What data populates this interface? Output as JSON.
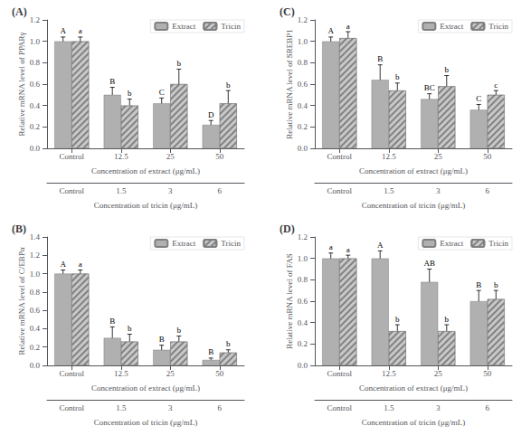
{
  "chart_data": [
    {
      "type": "bar",
      "title": "(A)",
      "ylabel": "Relative mRNA level of PPARγ",
      "xlabel": "Concentration of extract (μg/mL)",
      "xlabel2": "Concentration of tricin (μg/mL)",
      "categories": [
        "Control",
        "12.5",
        "25",
        "50"
      ],
      "categories2": [
        "Control",
        "1.5",
        "3",
        "6"
      ],
      "ylim": [
        0.0,
        1.2
      ],
      "yticks": [
        {
          "value": 0.0,
          "label": "0.0"
        },
        0.2,
        0.4,
        0.6,
        0.8,
        {
          "value": 1.0,
          "label": "1.0"
        },
        1.2
      ],
      "grid": false,
      "legend": "upper right",
      "series": [
        {
          "name": "Extract",
          "color": "#b0b0b0",
          "values": [
            1.0,
            0.5,
            0.42,
            0.22
          ],
          "errors": [
            0.04,
            0.07,
            0.05,
            0.04
          ],
          "annotations": [
            "A",
            "B",
            "C",
            "D"
          ]
        },
        {
          "name": "Tricin",
          "color": "#c8c8c8",
          "values": [
            1.0,
            0.4,
            0.6,
            0.42
          ],
          "errors": [
            0.04,
            0.06,
            0.14,
            0.12
          ],
          "annotations": [
            "a",
            "b",
            "b",
            "b"
          ]
        }
      ]
    },
    {
      "type": "bar",
      "title": "(C)",
      "ylabel": "Relative mRNA level of SREBP1",
      "xlabel": "Concentration of extract (μg/mL)",
      "xlabel2": "Concentration of tricin (μg/mL)",
      "categories": [
        "Control",
        "12.5",
        "25",
        "50"
      ],
      "categories2": [
        "Control",
        "1.5",
        "3",
        "6"
      ],
      "ylim": [
        0.0,
        1.2
      ],
      "yticks": [
        {
          "value": 0.0,
          "label": "0.0"
        },
        0.2,
        0.4,
        0.6,
        0.8,
        {
          "value": 1.0,
          "label": "1.0"
        },
        1.2
      ],
      "grid": false,
      "legend": "upper right",
      "series": [
        {
          "name": "Extract",
          "color": "#b0b0b0",
          "values": [
            1.0,
            0.64,
            0.46,
            0.36
          ],
          "errors": [
            0.04,
            0.14,
            0.05,
            0.05
          ],
          "annotations": [
            "A",
            "B",
            "BC",
            "C"
          ]
        },
        {
          "name": "Tricin",
          "color": "#c8c8c8",
          "values": [
            1.03,
            0.54,
            0.58,
            0.5
          ],
          "errors": [
            0.06,
            0.07,
            0.1,
            0.04
          ],
          "annotations": [
            "a",
            "b",
            "b",
            "c"
          ]
        }
      ]
    },
    {
      "type": "bar",
      "title": "(B)",
      "ylabel": "Relative mRNA level of C/EBPα",
      "xlabel": "Concentration of extract (μg/mL)",
      "xlabel2": "Concentration of tricin (μg/mL)",
      "categories": [
        "Control",
        "12.5",
        "25",
        "50"
      ],
      "categories2": [
        "Control",
        "1.5",
        "3",
        "6"
      ],
      "ylim": [
        0.0,
        1.4
      ],
      "yticks": [
        {
          "value": 0.0,
          "label": "0.0"
        },
        0.2,
        0.4,
        0.6,
        0.8,
        {
          "value": 1.0,
          "label": "1.0"
        },
        1.2,
        1.4
      ],
      "grid": false,
      "legend": "upper right",
      "series": [
        {
          "name": "Extract",
          "color": "#b0b0b0",
          "values": [
            1.0,
            0.3,
            0.17,
            0.06
          ],
          "errors": [
            0.04,
            0.12,
            0.05,
            0.02
          ],
          "annotations": [
            "A",
            "B",
            "B",
            "B"
          ]
        },
        {
          "name": "Tricin",
          "color": "#c8c8c8",
          "values": [
            1.0,
            0.26,
            0.26,
            0.14
          ],
          "errors": [
            0.04,
            0.08,
            0.06,
            0.03
          ],
          "annotations": [
            "a",
            "b",
            "b",
            "b"
          ]
        }
      ]
    },
    {
      "type": "bar",
      "title": "(D)",
      "ylabel": "Relative mRNA level of FAS",
      "xlabel": "Concentration of extract (μg/mL)",
      "xlabel2": "Concentration of tricin (μg/mL)",
      "categories": [
        "Control",
        "12.5",
        "25",
        "50"
      ],
      "categories2": [
        "Control",
        "1.5",
        "3",
        "6"
      ],
      "ylim": [
        0.0,
        1.2
      ],
      "yticks": [
        {
          "value": 0.0,
          "label": "0.0"
        },
        0.2,
        0.4,
        0.6,
        0.8,
        {
          "value": 1.0,
          "label": "1.0"
        },
        1.2
      ],
      "grid": false,
      "legend": "upper right",
      "series": [
        {
          "name": "Extract",
          "color": "#b0b0b0",
          "values": [
            1.0,
            1.0,
            0.78,
            0.6
          ],
          "errors": [
            0.05,
            0.07,
            0.12,
            0.1
          ],
          "annotations": [
            "a",
            "A",
            "AB",
            "B"
          ]
        },
        {
          "name": "Tricin",
          "color": "#c8c8c8",
          "values": [
            1.0,
            0.32,
            0.32,
            0.62
          ],
          "errors": [
            0.03,
            0.06,
            0.06,
            0.08
          ],
          "annotations": [
            "a",
            "b",
            "b",
            "b"
          ]
        }
      ]
    }
  ]
}
